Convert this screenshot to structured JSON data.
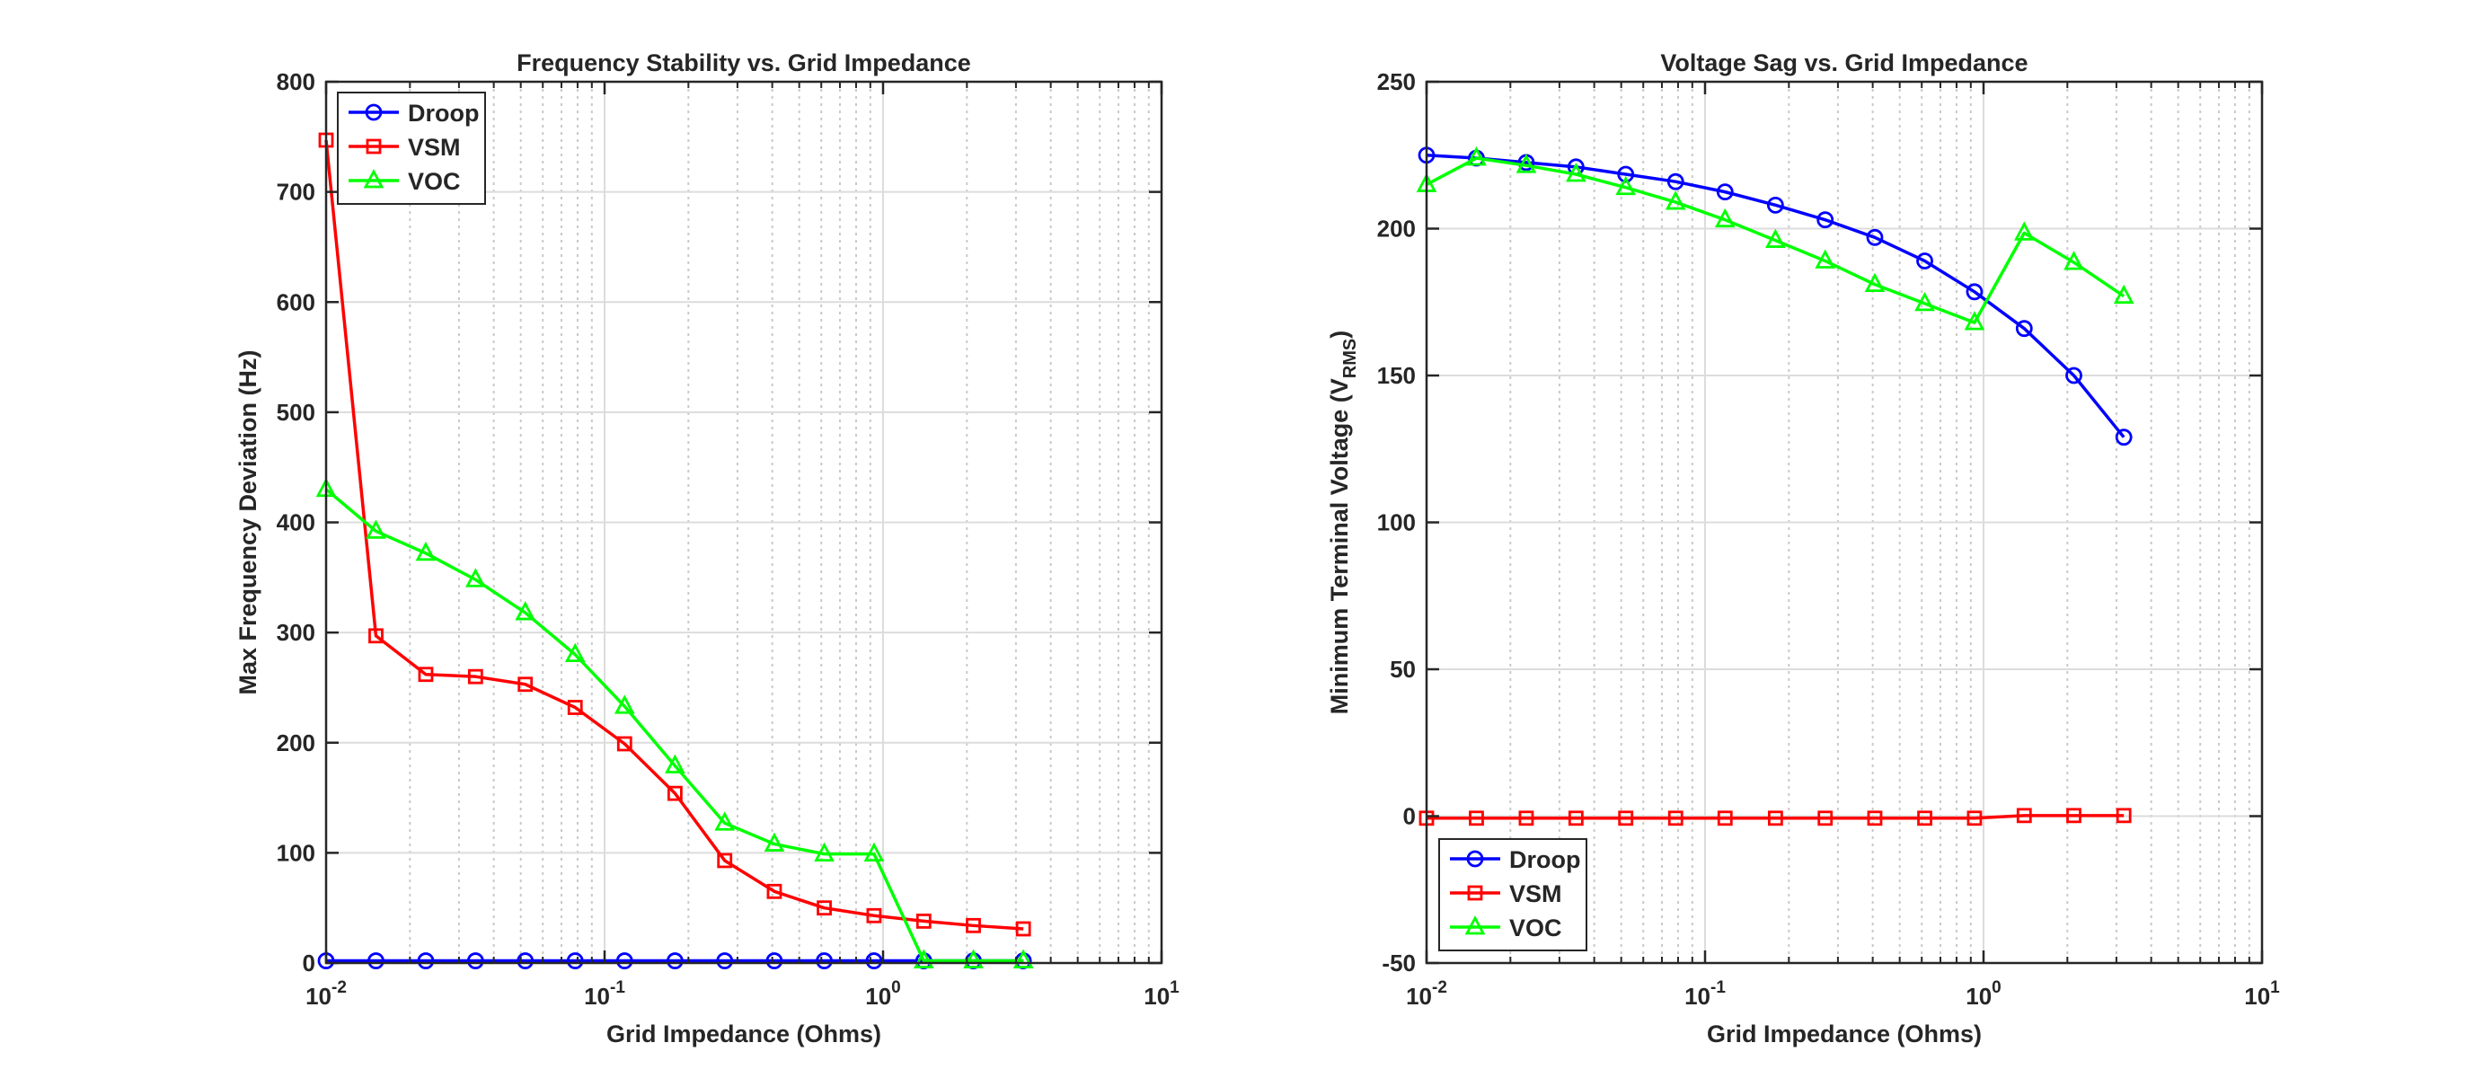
{
  "figure": {
    "background": "#ffffff"
  },
  "chart_data": [
    {
      "type": "line",
      "title": "Frequency Stability vs. Grid Impedance",
      "xlabel": "Grid Impedance (Ohms)",
      "ylabel": "Max Frequency Deviation (Hz)",
      "x_scale": "log",
      "xlim": [
        0.01,
        10
      ],
      "ylim": [
        0,
        800
      ],
      "x_ticks": [
        0.01,
        0.1,
        1,
        10
      ],
      "x_tick_labels": [
        {
          "base": "10",
          "exp": "-2"
        },
        {
          "base": "10",
          "exp": "-1"
        },
        {
          "base": "10",
          "exp": "0"
        },
        {
          "base": "10",
          "exp": "1"
        }
      ],
      "y_ticks": [
        0,
        100,
        200,
        300,
        400,
        500,
        600,
        700,
        800
      ],
      "y_tick_labels": [
        "0",
        "100",
        "200",
        "300",
        "400",
        "500",
        "600",
        "700",
        "800"
      ],
      "grid": true,
      "minor_grid": true,
      "legend_position": "top-left",
      "x": [
        0.01,
        0.0151,
        0.0228,
        0.0344,
        0.0519,
        0.0784,
        0.118,
        0.179,
        0.27,
        0.407,
        0.615,
        0.928,
        1.4,
        2.11,
        3.19
      ],
      "series": [
        {
          "name": "Droop",
          "color": "#0000ff",
          "marker": "circle",
          "values": [
            2,
            2,
            2,
            2,
            2,
            2,
            2,
            2,
            2,
            2,
            2,
            2,
            2,
            2,
            2
          ]
        },
        {
          "name": "VSM",
          "color": "#ff0000",
          "marker": "square",
          "values": [
            747,
            297,
            262,
            260,
            253,
            232,
            199,
            154,
            93,
            65,
            50,
            43,
            38,
            34,
            31
          ]
        },
        {
          "name": "VOC",
          "color": "#00ff00",
          "marker": "triangle",
          "values": [
            430,
            392,
            372,
            348,
            318,
            280,
            233,
            179,
            127,
            108,
            99,
            99,
            2,
            2,
            2
          ]
        }
      ]
    },
    {
      "type": "line",
      "title": "Voltage Sag vs. Grid Impedance",
      "xlabel": "Grid Impedance (Ohms)",
      "ylabel": {
        "main": "Minimum Terminal Voltage (V",
        "sub": "RMS",
        "close": ")"
      },
      "x_scale": "log",
      "xlim": [
        0.01,
        10
      ],
      "ylim": [
        -50,
        250
      ],
      "x_ticks": [
        0.01,
        0.1,
        1,
        10
      ],
      "x_tick_labels": [
        {
          "base": "10",
          "exp": "-2"
        },
        {
          "base": "10",
          "exp": "-1"
        },
        {
          "base": "10",
          "exp": "0"
        },
        {
          "base": "10",
          "exp": "1"
        }
      ],
      "y_ticks": [
        -50,
        0,
        50,
        100,
        150,
        200,
        250
      ],
      "y_tick_labels": [
        "-50",
        "0",
        "50",
        "100",
        "150",
        "200",
        "250"
      ],
      "grid": true,
      "minor_grid": true,
      "legend_position": "bottom-left",
      "x": [
        0.01,
        0.0151,
        0.0228,
        0.0344,
        0.0519,
        0.0784,
        0.118,
        0.179,
        0.27,
        0.407,
        0.615,
        0.928,
        1.4,
        2.11,
        3.19
      ],
      "series": [
        {
          "name": "Droop",
          "color": "#0000ff",
          "marker": "circle",
          "values": [
            225,
            224,
            222.5,
            221,
            218.5,
            216,
            212.5,
            208,
            203,
            197,
            189,
            178.5,
            166,
            150,
            129
          ]
        },
        {
          "name": "VSM",
          "color": "#ff0000",
          "marker": "square",
          "values": [
            -0.7,
            -0.7,
            -0.7,
            -0.7,
            -0.7,
            -0.7,
            -0.7,
            -0.7,
            -0.7,
            -0.7,
            -0.7,
            -0.7,
            0.2,
            0.2,
            0.2
          ]
        },
        {
          "name": "VOC",
          "color": "#00ff00",
          "marker": "triangle",
          "values": [
            215,
            224,
            221.5,
            218.5,
            214,
            209,
            203,
            196,
            189,
            181,
            174.5,
            168,
            198.5,
            188.5,
            177
          ]
        }
      ]
    }
  ]
}
